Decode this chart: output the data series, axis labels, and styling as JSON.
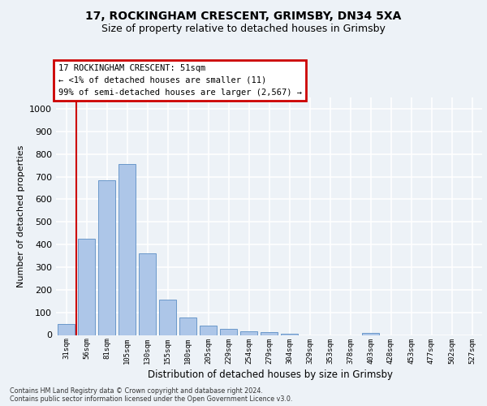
{
  "title_line1": "17, ROCKINGHAM CRESCENT, GRIMSBY, DN34 5XA",
  "title_line2": "Size of property relative to detached houses in Grimsby",
  "xlabel": "Distribution of detached houses by size in Grimsby",
  "ylabel": "Number of detached properties",
  "categories": [
    "31sqm",
    "56sqm",
    "81sqm",
    "105sqm",
    "130sqm",
    "155sqm",
    "180sqm",
    "205sqm",
    "229sqm",
    "254sqm",
    "279sqm",
    "304sqm",
    "329sqm",
    "353sqm",
    "378sqm",
    "403sqm",
    "428sqm",
    "453sqm",
    "477sqm",
    "502sqm",
    "527sqm"
  ],
  "values": [
    50,
    425,
    685,
    757,
    362,
    155,
    76,
    40,
    27,
    15,
    11,
    7,
    0,
    0,
    0,
    10,
    0,
    0,
    0,
    0,
    0
  ],
  "bar_color": "#adc6e8",
  "bar_edge_color": "#5b8ec4",
  "annotation_text": "17 ROCKINGHAM CRESCENT: 51sqm\n← <1% of detached houses are smaller (11)\n99% of semi-detached houses are larger (2,567) →",
  "annotation_box_facecolor": "#ffffff",
  "annotation_box_edgecolor": "#cc0000",
  "red_line_x": 0.5,
  "ylim": [
    0,
    1050
  ],
  "yticks": [
    0,
    100,
    200,
    300,
    400,
    500,
    600,
    700,
    800,
    900,
    1000
  ],
  "bg_color": "#edf2f7",
  "grid_color": "#ffffff",
  "title_fontsize": 10,
  "subtitle_fontsize": 9,
  "footer_line1": "Contains HM Land Registry data © Crown copyright and database right 2024.",
  "footer_line2": "Contains public sector information licensed under the Open Government Licence v3.0."
}
